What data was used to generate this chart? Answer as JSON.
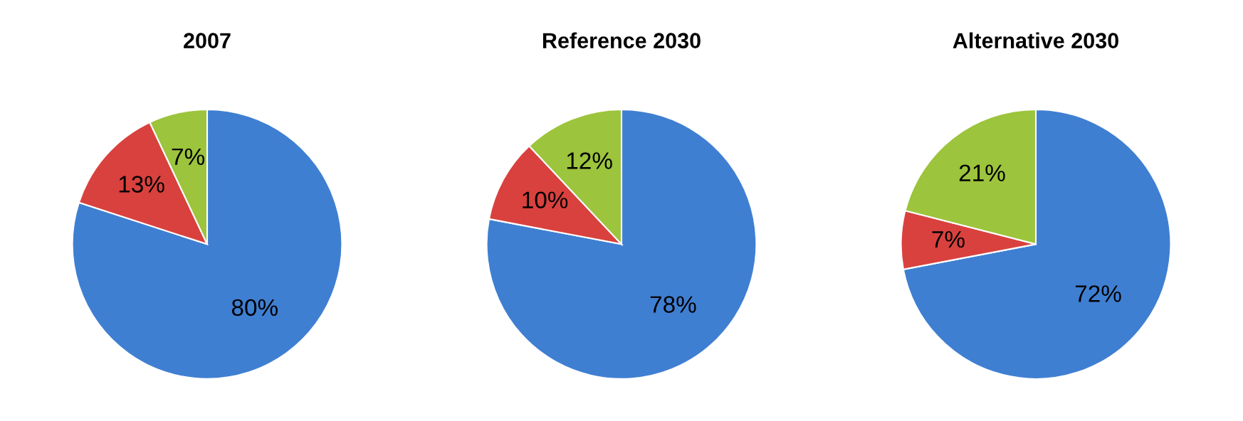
{
  "chart_data": [
    {
      "type": "pie",
      "title": "2007",
      "categories": [
        null,
        null,
        null
      ],
      "values": [
        80,
        13,
        7
      ],
      "colors": [
        "#3f7fd2",
        "#d9413e",
        "#9cc43c"
      ],
      "value_labels": [
        "80%",
        "13%",
        "7%"
      ]
    },
    {
      "type": "pie",
      "title": "Reference 2030",
      "categories": [
        null,
        null,
        null
      ],
      "values": [
        78,
        10,
        12
      ],
      "colors": [
        "#3f7fd2",
        "#d9413e",
        "#9cc43c"
      ],
      "value_labels": [
        "78%",
        "10%",
        "12%"
      ]
    },
    {
      "type": "pie",
      "title": "Alternative 2030",
      "categories": [
        null,
        null,
        null
      ],
      "values": [
        72,
        7,
        21
      ],
      "colors": [
        "#3f7fd2",
        "#d9413e",
        "#9cc43c"
      ],
      "value_labels": [
        "72%",
        "7%",
        "21%"
      ]
    }
  ]
}
